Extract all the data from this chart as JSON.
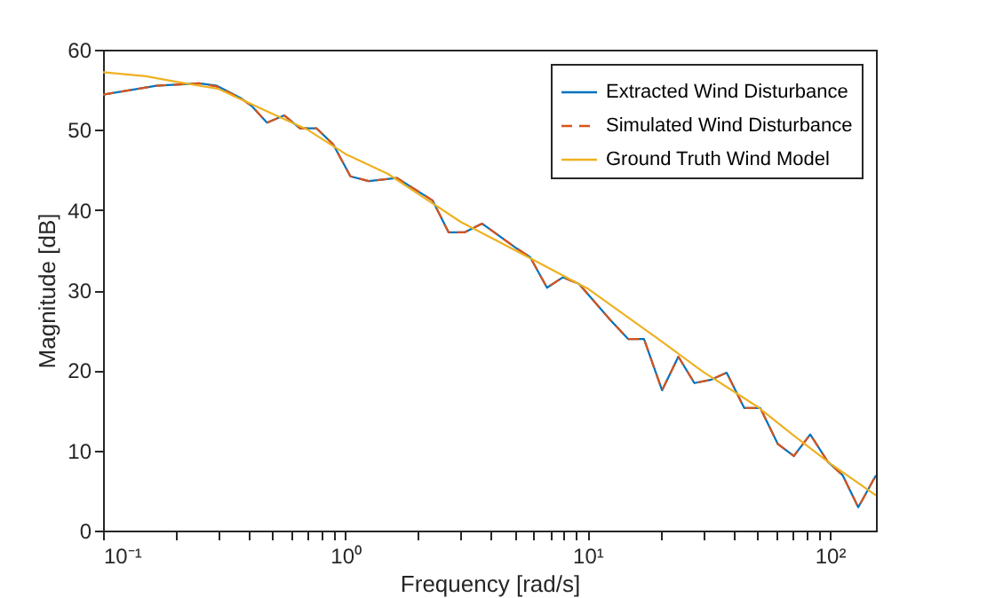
{
  "chart_data": {
    "type": "line",
    "xlabel": "Frequency [rad/s]",
    "ylabel": "Magnitude [dB]",
    "log": "x",
    "xlim": [
      0.1,
      155
    ],
    "ylim": [
      0,
      60
    ],
    "xticks": [
      {
        "value": 0.1,
        "label": "10⁻¹"
      },
      {
        "value": 0.2,
        "label": null
      },
      {
        "value": 0.3,
        "label": null
      },
      {
        "value": 0.4,
        "label": null
      },
      {
        "value": 0.5,
        "label": null
      },
      {
        "value": 0.6,
        "label": null
      },
      {
        "value": 0.7,
        "label": null
      },
      {
        "value": 0.8,
        "label": null
      },
      {
        "value": 0.9,
        "label": null
      },
      {
        "value": 1,
        "label": "10⁰"
      },
      {
        "value": 2,
        "label": null
      },
      {
        "value": 3,
        "label": null
      },
      {
        "value": 4,
        "label": null
      },
      {
        "value": 5,
        "label": null
      },
      {
        "value": 6,
        "label": null
      },
      {
        "value": 7,
        "label": null
      },
      {
        "value": 8,
        "label": null
      },
      {
        "value": 9,
        "label": null
      },
      {
        "value": 10,
        "label": "10¹"
      },
      {
        "value": 20,
        "label": null
      },
      {
        "value": 30,
        "label": null
      },
      {
        "value": 40,
        "label": null
      },
      {
        "value": 50,
        "label": null
      },
      {
        "value": 60,
        "label": null
      },
      {
        "value": 70,
        "label": null
      },
      {
        "value": 80,
        "label": null
      },
      {
        "value": 90,
        "label": null
      },
      {
        "value": 100,
        "label": "10²"
      }
    ],
    "yticks": [
      0,
      10,
      20,
      30,
      40,
      50,
      60
    ],
    "grid": false,
    "legend": "top right",
    "marker": "none",
    "series": [
      {
        "name": "Extracted Wind Disturbance",
        "color": "#0072bd",
        "line_style": "solid",
        "x": [
          0.1,
          0.166,
          0.249,
          0.295,
          0.368,
          0.41,
          0.475,
          0.56,
          0.65,
          0.76,
          0.89,
          1.05,
          1.25,
          1.63,
          2.29,
          2.67,
          3.1,
          3.67,
          5.1,
          5.8,
          6.8,
          7.9,
          9.2,
          12.4,
          14.7,
          17.1,
          20.3,
          23.7,
          27.6,
          32.2,
          37.5,
          44.3,
          51.6,
          61,
          71,
          83,
          98,
          113,
          131,
          155
        ],
        "values": [
          54.4,
          55.5,
          55.8,
          55.5,
          54,
          53,
          50.9,
          51.8,
          50.2,
          50.2,
          48.2,
          44.2,
          43.6,
          44,
          41.2,
          37.2,
          37.2,
          38.3,
          35.2,
          34.1,
          30.3,
          31.6,
          30.8,
          26.3,
          23.9,
          23.9,
          17.5,
          21.7,
          18.4,
          18.8,
          19.7,
          15.3,
          15.3,
          10.8,
          9.3,
          12,
          8.6,
          6.9,
          2.9,
          6.9
        ]
      },
      {
        "name": "Simulated Wind Disturbance",
        "color": "#d95319",
        "line_style": "dashed",
        "x": [
          0.1,
          0.166,
          0.249,
          0.295,
          0.368,
          0.41,
          0.475,
          0.56,
          0.65,
          0.76,
          0.89,
          1.05,
          1.25,
          1.63,
          2.29,
          2.67,
          3.1,
          3.67,
          5.1,
          5.8,
          6.8,
          7.9,
          9.2,
          12.4,
          14.7,
          17.1,
          20.3,
          23.7,
          27.6,
          32.2,
          37.5,
          44.3,
          51.6,
          61,
          71,
          83,
          98,
          113,
          131,
          155
        ],
        "values": [
          54.4,
          55.5,
          55.8,
          55.4,
          54,
          53,
          50.9,
          51.8,
          50.2,
          50.2,
          48.2,
          44.2,
          43.6,
          44,
          41.2,
          37.2,
          37.2,
          38.3,
          35.2,
          34.1,
          30.3,
          31.6,
          30.8,
          26.3,
          23.9,
          23.9,
          17.5,
          21.7,
          18.4,
          18.8,
          19.7,
          15.3,
          15.3,
          10.8,
          9.3,
          12,
          8.6,
          6.9,
          2.9,
          6.9
        ]
      },
      {
        "name": "Ground Truth Wind Model",
        "color": "#edb120",
        "line_style": "solid",
        "x": [
          0.1,
          0.15,
          0.2,
          0.3,
          0.5,
          0.7,
          1,
          1.5,
          2,
          3,
          5,
          10,
          20,
          30,
          50,
          70,
          100,
          155
        ],
        "values": [
          57.2,
          56.7,
          56,
          55.1,
          52,
          50,
          47,
          44.5,
          42,
          38.5,
          35,
          30.2,
          23.7,
          19.8,
          15.5,
          12,
          8.4,
          4.4
        ]
      }
    ]
  }
}
